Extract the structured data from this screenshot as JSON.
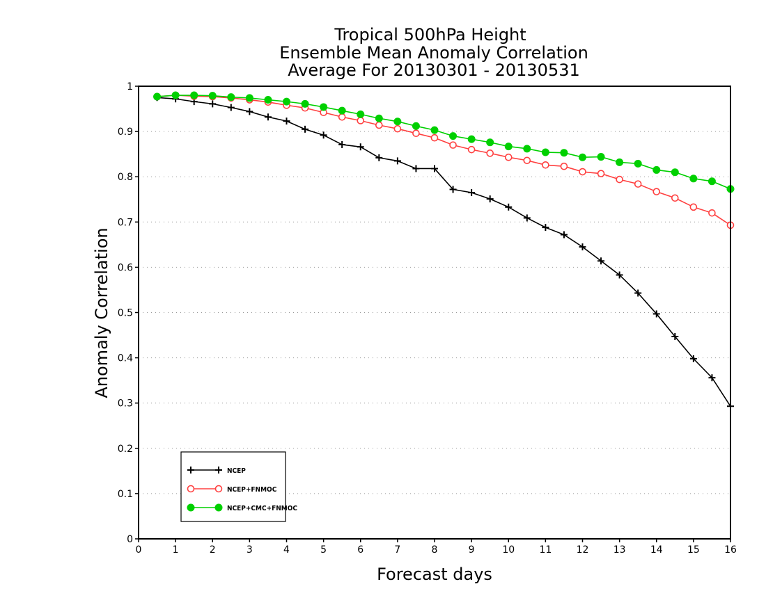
{
  "chart_data": {
    "type": "line",
    "title_lines": [
      "Tropical 500hPa Height",
      "Ensemble Mean Anomaly Correlation",
      "Average For 20130301 - 20130531"
    ],
    "xlabel": "Forecast days",
    "ylabel": "Anomaly Correlation",
    "xlim": [
      0,
      16
    ],
    "ylim": [
      0,
      1
    ],
    "xticks": [
      0,
      1,
      2,
      3,
      4,
      5,
      6,
      7,
      8,
      9,
      10,
      11,
      12,
      13,
      14,
      15,
      16
    ],
    "yticks": [
      0,
      0.1,
      0.2,
      0.3,
      0.4,
      0.5,
      0.6,
      0.7,
      0.8,
      0.9,
      1
    ],
    "ytick_labels": [
      "0",
      "0.1",
      "0.2",
      "0.3",
      "0.4",
      "0.5",
      "0.6",
      "0.7",
      "0.8",
      "0.9",
      "1"
    ],
    "grid": "horizontal dotted",
    "legend_position": "bottom-left",
    "x": [
      0.5,
      1,
      1.5,
      2,
      2.5,
      3,
      3.5,
      4,
      4.5,
      5,
      5.5,
      6,
      6.5,
      7,
      7.5,
      8,
      8.5,
      9,
      9.5,
      10,
      10.5,
      11,
      11.5,
      12,
      12.5,
      13,
      13.5,
      14,
      14.5,
      15,
      15.5,
      16
    ],
    "series": [
      {
        "name": "NCEP",
        "color": "#000000",
        "marker": "plus",
        "values": [
          0.975,
          0.972,
          0.966,
          0.961,
          0.953,
          0.944,
          0.932,
          0.923,
          0.905,
          0.892,
          0.871,
          0.866,
          0.842,
          0.835,
          0.818,
          0.818,
          0.772,
          0.765,
          0.751,
          0.733,
          0.709,
          0.688,
          0.672,
          0.645,
          0.614,
          0.583,
          0.543,
          0.497,
          0.447,
          0.398,
          0.356,
          0.293
        ]
      },
      {
        "name": "NCEP+FNMOC",
        "color": "#ff4040",
        "marker": "open-circle",
        "values": [
          0.977,
          0.98,
          0.978,
          0.977,
          0.974,
          0.97,
          0.965,
          0.958,
          0.952,
          0.942,
          0.932,
          0.924,
          0.914,
          0.906,
          0.896,
          0.886,
          0.87,
          0.86,
          0.852,
          0.843,
          0.836,
          0.826,
          0.823,
          0.811,
          0.807,
          0.794,
          0.784,
          0.767,
          0.753,
          0.733,
          0.72,
          0.693
        ]
      },
      {
        "name": "NCEP+CMC+FNMOC",
        "color": "#00d000",
        "marker": "filled-circle",
        "values": [
          0.977,
          0.98,
          0.98,
          0.979,
          0.976,
          0.974,
          0.97,
          0.966,
          0.961,
          0.954,
          0.946,
          0.938,
          0.929,
          0.922,
          0.912,
          0.903,
          0.89,
          0.883,
          0.876,
          0.867,
          0.862,
          0.854,
          0.853,
          0.843,
          0.844,
          0.832,
          0.829,
          0.815,
          0.81,
          0.796,
          0.79,
          0.773
        ]
      }
    ]
  }
}
